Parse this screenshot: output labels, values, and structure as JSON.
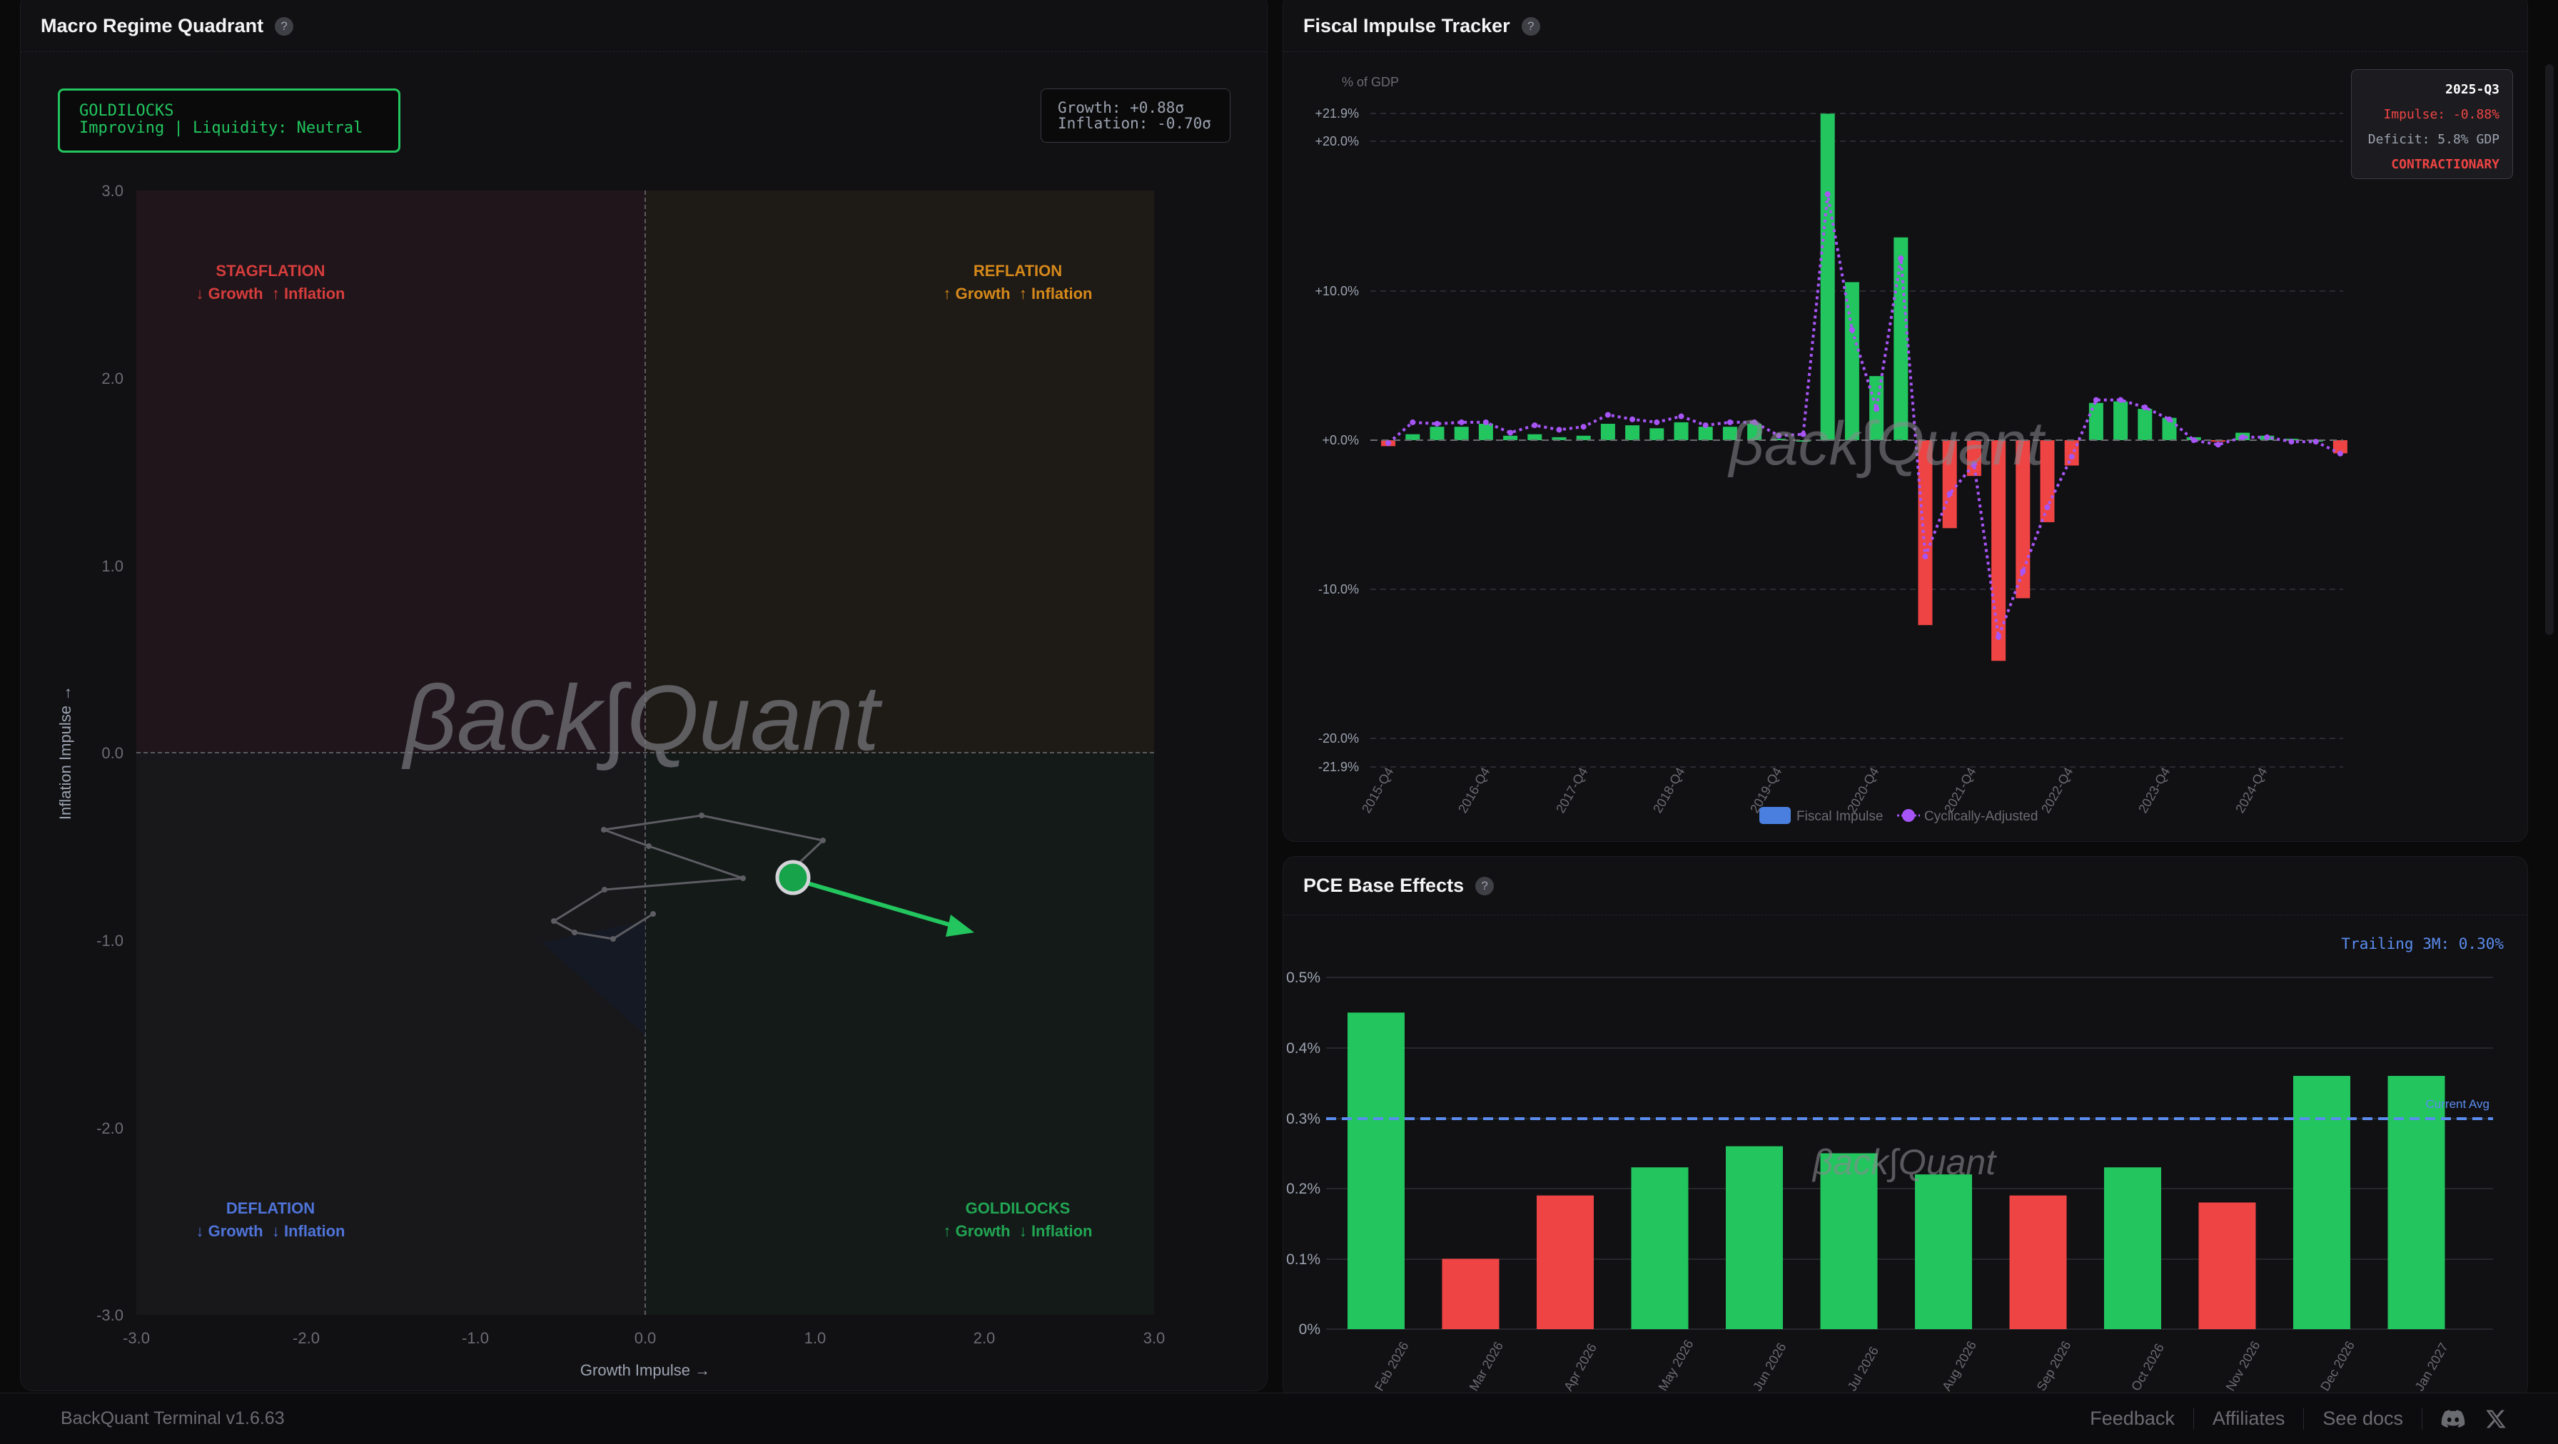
{
  "quadrant_panel": {
    "title": "Macro Regime Quadrant",
    "help_icon": "?",
    "status_box": {
      "regime": "GOLDILOCKS",
      "detail": "Improving | Liquidity: Neutral",
      "color": "#22c55e"
    },
    "readout": {
      "growth": "Growth: +0.88σ",
      "inflation": "Inflation: -0.70σ"
    },
    "quadrants": {
      "stagflation": {
        "name": "STAGFLATION",
        "desc": "↓ Growth  ↑ Inflation",
        "color": "#e04545"
      },
      "reflation": {
        "name": "REFLATION",
        "desc": "↑ Growth  ↑ Inflation",
        "color": "#d6891a"
      },
      "deflation": {
        "name": "DEFLATION",
        "desc": "↓ Growth  ↓ Inflation",
        "color": "#4f74d9"
      },
      "goldilocks": {
        "name": "GOLDILOCKS",
        "desc": "↑ Growth  ↓ Inflation",
        "color": "#22a653"
      }
    },
    "watermark": "βack∫Quant",
    "x_axis_label": "Growth Impulse →",
    "y_axis_label": "Inflation Impulse →",
    "x_ticks": [
      "-3.0",
      "-2.0",
      "-1.0",
      "0.0",
      "1.0",
      "2.0",
      "3.0"
    ],
    "y_ticks": [
      "3.0",
      "2.0",
      "1.0",
      "0.0",
      "-1.0",
      "-2.0",
      "-3.0"
    ]
  },
  "fiscal_panel": {
    "title": "Fiscal Impulse Tracker",
    "help_icon": "?",
    "y_unit": "% of GDP",
    "y_ticks": [
      "+21.9%",
      "+20.0%",
      "+10.0%",
      "+0.0%",
      "-10.0%",
      "-20.0%",
      "-21.9%"
    ],
    "x_ticks": [
      "2015-Q4",
      "2016-Q4",
      "2017-Q4",
      "2018-Q4",
      "2019-Q4",
      "2020-Q4",
      "2021-Q4",
      "2022-Q4",
      "2023-Q4",
      "2024-Q4"
    ],
    "legend": {
      "impulse": "Fiscal Impulse",
      "adjusted": "Cyclically-Adjusted"
    },
    "tooltip": {
      "period": "2025-Q3",
      "impulse": "Impulse: -0.88%",
      "deficit": "Deficit: 5.8% GDP",
      "status": "CONTRACTIONARY"
    }
  },
  "pce_panel": {
    "title": "PCE Base Effects",
    "help_icon": "?",
    "trailing": "Trailing 3M: 0.30%",
    "avg_label": "Current Avg",
    "y_ticks": [
      "0.5%",
      "0.4%",
      "0.3%",
      "0.2%",
      "0.1%",
      "0%"
    ]
  },
  "footer": {
    "version": "BackQuant Terminal v1.6.63",
    "links": [
      "Feedback",
      "Affiliates",
      "See docs"
    ],
    "icons": [
      "discord-icon",
      "x-icon"
    ]
  },
  "colors": {
    "positive": "#22c55e",
    "negative": "#ef4444",
    "adjusted_line": "#a855f7",
    "avg_line": "#5b8def",
    "legend_impulse": "#4a7fe0"
  },
  "chart_data": [
    {
      "type": "scatter",
      "title": "Macro Regime Quadrant",
      "xlabel": "Growth Impulse",
      "ylabel": "Inflation Impulse",
      "xlim": [
        -3,
        3
      ],
      "ylim": [
        -3,
        3
      ],
      "current_point": {
        "x": 0.88,
        "y": -0.7
      },
      "projected_direction": {
        "x": 1.83,
        "y": -0.97
      },
      "trail": [
        {
          "x": 0.05,
          "y": -0.88
        },
        {
          "x": -0.24,
          "y": -1.03
        },
        {
          "x": -0.48,
          "y": -0.99
        },
        {
          "x": -0.6,
          "y": -0.93
        },
        {
          "x": -0.22,
          "y": -0.75
        },
        {
          "x": 0.6,
          "y": -0.68
        },
        {
          "x": 0.02,
          "y": -0.52
        },
        {
          "x": -0.2,
          "y": -0.45
        },
        {
          "x": 0.35,
          "y": -0.38
        },
        {
          "x": 1.05,
          "y": -0.5
        },
        {
          "x": 0.88,
          "y": -0.7
        }
      ],
      "quadrant_labels": [
        "STAGFLATION",
        "REFLATION",
        "DEFLATION",
        "GOLDILOCKS"
      ]
    },
    {
      "type": "bar",
      "title": "Fiscal Impulse Tracker",
      "ylabel": "% of GDP",
      "ylim": [
        -21.9,
        21.9
      ],
      "categories": [
        "2015-Q4",
        "2016-Q1",
        "2016-Q2",
        "2016-Q3",
        "2016-Q4",
        "2017-Q1",
        "2017-Q2",
        "2017-Q3",
        "2017-Q4",
        "2018-Q1",
        "2018-Q2",
        "2018-Q3",
        "2018-Q4",
        "2019-Q1",
        "2019-Q2",
        "2019-Q3",
        "2019-Q4",
        "2020-Q1",
        "2020-Q2",
        "2020-Q3",
        "2020-Q4",
        "2021-Q1",
        "2021-Q2",
        "2021-Q3",
        "2021-Q4",
        "2022-Q1",
        "2022-Q2",
        "2022-Q3",
        "2022-Q4",
        "2023-Q1",
        "2023-Q2",
        "2023-Q3",
        "2023-Q4",
        "2024-Q1",
        "2024-Q2",
        "2024-Q3",
        "2024-Q4",
        "2025-Q1",
        "2025-Q2",
        "2025-Q3"
      ],
      "series": [
        {
          "name": "Fiscal Impulse",
          "values": [
            -0.4,
            0.4,
            0.9,
            0.9,
            1.1,
            0.3,
            0.4,
            0.2,
            0.3,
            1.1,
            1.0,
            0.8,
            1.2,
            0.9,
            0.9,
            1.1,
            0.1,
            0.0,
            21.9,
            10.6,
            4.3,
            13.6,
            -12.4,
            -5.9,
            -2.4,
            -14.8,
            -10.6,
            -5.5,
            -1.7,
            2.5,
            2.6,
            2.1,
            1.5,
            0.2,
            -0.1,
            0.5,
            0.3,
            0.1,
            0.0,
            -0.88
          ]
        },
        {
          "name": "Cyclically-Adjusted",
          "values": [
            -0.2,
            1.2,
            1.1,
            1.2,
            1.2,
            0.5,
            1.0,
            0.7,
            0.9,
            1.7,
            1.4,
            1.2,
            1.6,
            1.0,
            1.2,
            1.2,
            0.3,
            0.4,
            16.5,
            7.4,
            2.1,
            12.2,
            -7.8,
            -3.6,
            -1.6,
            -13.2,
            -8.8,
            -4.5,
            -1.1,
            2.7,
            2.7,
            2.2,
            1.4,
            0.0,
            -0.3,
            0.2,
            0.2,
            -0.1,
            -0.1,
            -0.9
          ]
        }
      ]
    },
    {
      "type": "bar",
      "title": "PCE Base Effects",
      "ylim": [
        0,
        0.5
      ],
      "categories": [
        "Feb 2026",
        "Mar 2026",
        "Apr 2026",
        "May 2026",
        "Jun 2026",
        "Jul 2026",
        "Aug 2026",
        "Sep 2026",
        "Oct 2026",
        "Nov 2026",
        "Dec 2026",
        "Jan 2027"
      ],
      "values": [
        0.45,
        0.1,
        0.19,
        0.23,
        0.26,
        0.25,
        0.22,
        0.19,
        0.23,
        0.18,
        0.36,
        0.36
      ],
      "bar_colors": [
        "green",
        "red",
        "red",
        "green",
        "green",
        "green",
        "green",
        "red",
        "green",
        "red",
        "green",
        "green"
      ],
      "reference_line": {
        "label": "Current Avg",
        "value": 0.3
      },
      "annotation": "Trailing 3M: 0.30%"
    }
  ]
}
